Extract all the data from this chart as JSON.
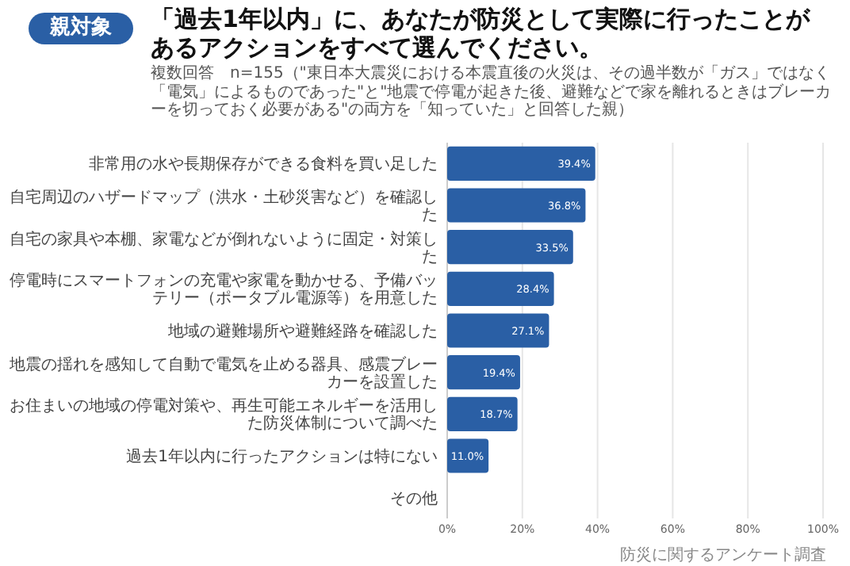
{
  "chart_data": {
    "type": "bar",
    "orientation": "horizontal",
    "title": "「過去1年以内」に、あなたが防災として実際に行ったことがあるアクションをすべて選んでください。",
    "subtitle": "複数回答　n=155（\"東日本大震災における本震直後の火災は、その過半数が「ガス」ではなく「電気」によるものであった\"と\"地震で停電が起きた後、避難などで家を離れるときはブレーカーを切っておく必要がある\"の両方を「知っていた」と回答した親）",
    "annotations": [
      "親対象",
      "防災に関するアンケート調査"
    ],
    "categories": [
      "非常用の水や長期保存ができる食料を買い足した",
      "自宅周辺のハザードマップ（洪水・土砂災害など）を確認した",
      "自宅の家具や本棚、家電などが倒れないように固定・対策した",
      "停電時にスマートフォンの充電や家電を動かせる、予備バッテリー（ポータブル電源等）を用意した",
      "地域の避難場所や避難経路を確認した",
      "地震の揺れを感知して自動で電気を止める器具、感震ブレーカーを設置した",
      "お住まいの地域の停電対策や、再生可能エネルギーを活用した防災体制について調べた",
      "過去1年以内に行ったアクションは特にない",
      "その他"
    ],
    "values": [
      39.4,
      36.8,
      33.5,
      28.4,
      27.1,
      19.4,
      18.7,
      11.0,
      0
    ],
    "value_labels": [
      "39.4%",
      "36.8%",
      "33.5%",
      "28.4%",
      "27.1%",
      "19.4%",
      "18.7%",
      "11.0%",
      null
    ],
    "color": "#2a5fa5",
    "xlim": [
      0,
      100
    ],
    "xticks": [
      {
        "value": 0,
        "label": "0%"
      },
      {
        "value": 20,
        "label": "20%"
      },
      {
        "value": 40,
        "label": "40%"
      },
      {
        "value": 60,
        "label": "60%"
      },
      {
        "value": 80,
        "label": "80%"
      },
      {
        "value": 100,
        "label": "100%"
      }
    ],
    "grid": "x"
  }
}
